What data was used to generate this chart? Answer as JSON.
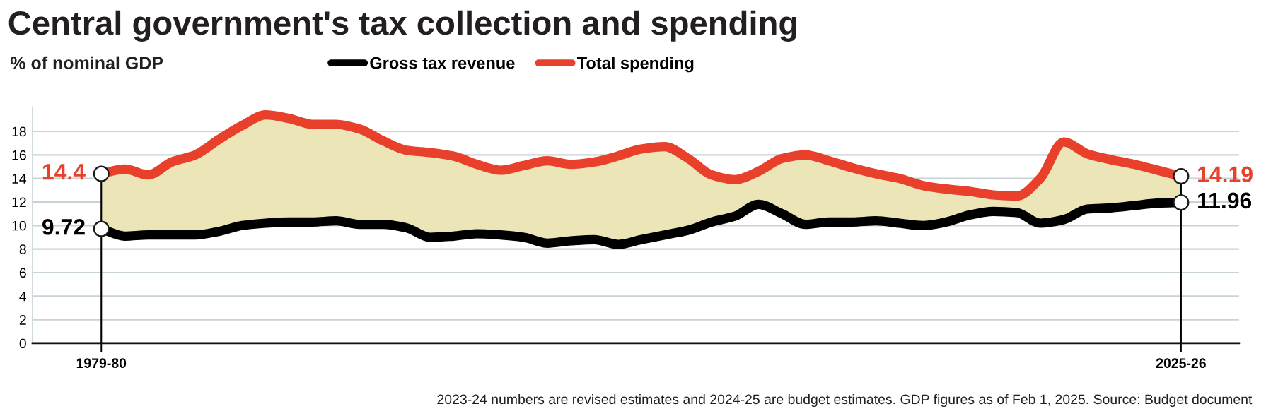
{
  "chart_data": {
    "type": "line",
    "title": "Central government's tax collection and spending",
    "subtitle": "% of nominal GDP",
    "categories": [
      "1979-80",
      null,
      null,
      null,
      null,
      null,
      null,
      null,
      null,
      null,
      null,
      null,
      null,
      null,
      null,
      null,
      null,
      null,
      null,
      null,
      null,
      null,
      null,
      null,
      null,
      null,
      null,
      null,
      null,
      null,
      null,
      null,
      null,
      null,
      null,
      null,
      null,
      null,
      null,
      null,
      null,
      null,
      null,
      null,
      null,
      null,
      "2025-26"
    ],
    "ylim": [
      0,
      20
    ],
    "yticks": [
      0,
      2,
      4,
      6,
      8,
      10,
      12,
      14,
      16,
      18
    ],
    "grid": "y",
    "legend": "top",
    "line_style": "solid",
    "series": [
      {
        "name": "Gross tax revenue",
        "color": "#000000",
        "values": [
          9.72,
          9.1,
          9.2,
          9.2,
          9.2,
          9.5,
          10.0,
          10.2,
          10.3,
          10.3,
          10.4,
          10.1,
          10.1,
          9.8,
          9.0,
          9.1,
          9.3,
          9.2,
          9.0,
          8.5,
          8.7,
          8.8,
          8.4,
          8.8,
          9.2,
          9.6,
          10.3,
          10.8,
          11.8,
          11.0,
          10.1,
          10.3,
          10.3,
          10.4,
          10.2,
          10.0,
          10.3,
          10.9,
          11.2,
          11.1,
          10.2,
          10.5,
          11.4,
          11.5,
          11.7,
          11.9,
          11.96
        ],
        "value_labels": [
          "9.72",
          null,
          null,
          null,
          null,
          null,
          null,
          null,
          null,
          null,
          null,
          null,
          null,
          null,
          null,
          null,
          null,
          null,
          null,
          null,
          null,
          null,
          null,
          null,
          null,
          null,
          null,
          null,
          null,
          null,
          null,
          null,
          null,
          null,
          null,
          null,
          null,
          null,
          null,
          null,
          null,
          null,
          null,
          null,
          null,
          null,
          "11.96"
        ]
      },
      {
        "name": "Total spending",
        "color": "#e8402a",
        "values": [
          14.4,
          14.8,
          14.3,
          15.4,
          16.0,
          17.3,
          18.5,
          19.4,
          19.1,
          18.6,
          18.6,
          18.2,
          17.2,
          16.4,
          16.2,
          15.9,
          15.2,
          14.7,
          15.1,
          15.5,
          15.2,
          15.4,
          15.9,
          16.5,
          16.7,
          15.7,
          14.3,
          13.9,
          14.6,
          15.7,
          16.0,
          15.5,
          14.9,
          14.4,
          14.0,
          13.4,
          13.1,
          12.9,
          12.6,
          12.5,
          14.0,
          17.1,
          16.1,
          15.6,
          15.2,
          14.7,
          14.19
        ],
        "value_labels": [
          "14.4",
          null,
          null,
          null,
          null,
          null,
          null,
          null,
          null,
          null,
          null,
          null,
          null,
          null,
          null,
          null,
          null,
          null,
          null,
          null,
          null,
          null,
          null,
          null,
          null,
          null,
          null,
          null,
          null,
          null,
          null,
          null,
          null,
          null,
          null,
          null,
          null,
          null,
          null,
          null,
          null,
          null,
          null,
          null,
          null,
          null,
          "14.19"
        ]
      },
      {
        "type": "area",
        "color": "#ebe5b7",
        "values": [
          null,
          null,
          null,
          null,
          null,
          null,
          null,
          null,
          null,
          null,
          null,
          null,
          null,
          null,
          null,
          null,
          null,
          null,
          null,
          null,
          null,
          null,
          null,
          null,
          null,
          null,
          null,
          null,
          null,
          null,
          null,
          null,
          null,
          null,
          null,
          null,
          null,
          null,
          null,
          null,
          null,
          null,
          null,
          null,
          null,
          null,
          null
        ],
        "lower": [
          9.72,
          9.1,
          9.2,
          9.2,
          9.2,
          9.5,
          10.0,
          10.2,
          10.3,
          10.3,
          10.4,
          10.1,
          10.1,
          9.8,
          9.0,
          9.1,
          9.3,
          9.2,
          9.0,
          8.5,
          8.7,
          8.8,
          8.4,
          8.8,
          9.2,
          9.6,
          10.3,
          10.8,
          11.8,
          11.0,
          10.1,
          10.3,
          10.3,
          10.4,
          10.2,
          10.0,
          10.3,
          10.9,
          11.2,
          11.1,
          10.2,
          10.5,
          11.4,
          11.5,
          11.7,
          11.9,
          11.96
        ],
        "upper": [
          14.4,
          14.8,
          14.3,
          15.4,
          16.0,
          17.3,
          18.5,
          19.4,
          19.1,
          18.6,
          18.6,
          18.2,
          17.2,
          16.4,
          16.2,
          15.9,
          15.2,
          14.7,
          15.1,
          15.5,
          15.2,
          15.4,
          15.9,
          16.5,
          16.7,
          15.7,
          14.3,
          13.9,
          14.6,
          15.7,
          16.0,
          15.5,
          14.9,
          14.4,
          14.0,
          13.4,
          13.1,
          12.9,
          12.6,
          12.5,
          14.0,
          17.1,
          16.1,
          15.6,
          15.2,
          14.7,
          14.19
        ]
      }
    ],
    "ref_lines": [
      {
        "axis": "x",
        "value": "1979-80",
        "color": "#000000"
      },
      {
        "axis": "x",
        "value": "2025-26",
        "color": "#000000"
      }
    ],
    "annotations": [
      "2023-24 numbers are revised estimates and 2024-25 are budget estimates. GDP figures as of Feb 1, 2025. Source: Budget document"
    ]
  }
}
